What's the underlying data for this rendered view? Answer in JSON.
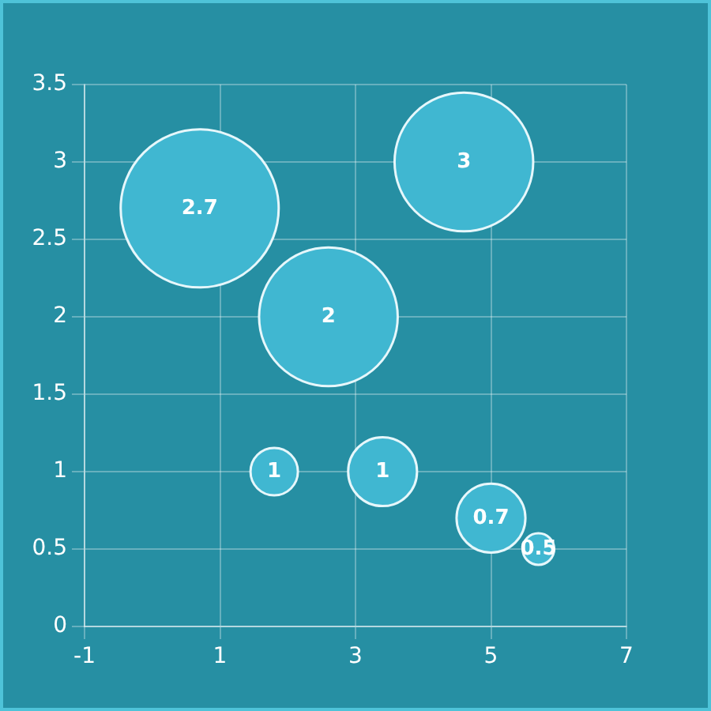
{
  "chart_data": {
    "type": "bubble",
    "x": [
      0.7,
      2.6,
      4.6,
      1.8,
      3.4,
      5.0,
      5.7
    ],
    "values": [
      2.7,
      2,
      3,
      1,
      1,
      0.7,
      0.5
    ],
    "sizes": [
      1,
      0.77,
      0.77,
      0.09,
      0.19,
      0.19,
      0.04
    ],
    "color": "#40b7d1",
    "data_labels": true,
    "xlim": [
      -1,
      7
    ],
    "xticks": [
      -1,
      1,
      3,
      5,
      7
    ],
    "ylim": [
      0,
      3.5
    ],
    "yticks": [
      0,
      0.5,
      1,
      1.5,
      2,
      2.5,
      3,
      3.5
    ],
    "grid": true,
    "legend": false
  }
}
